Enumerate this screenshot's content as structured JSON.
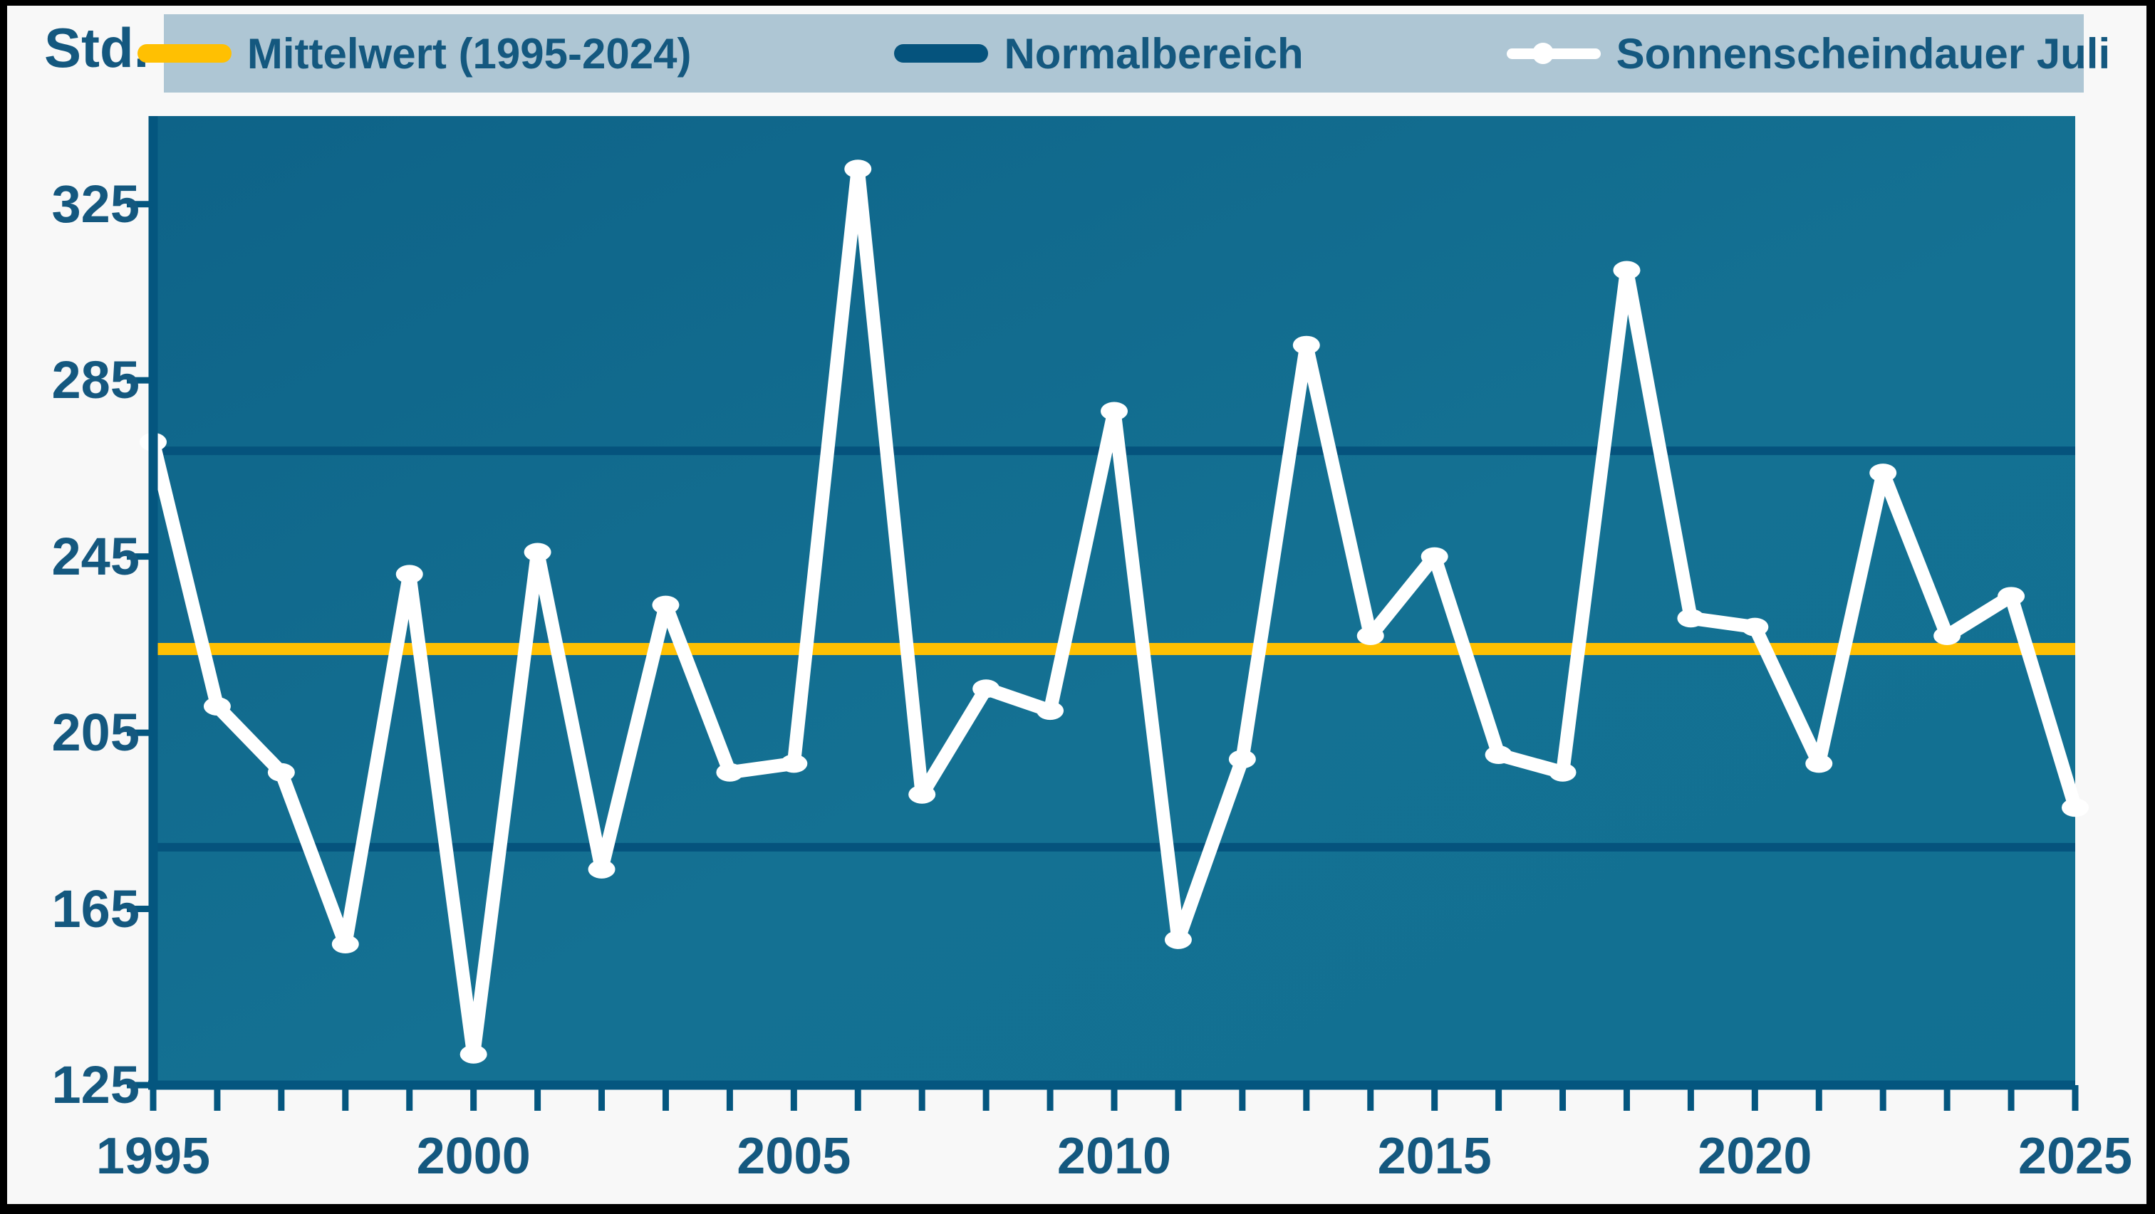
{
  "page": {
    "outer_frame_color": "#000000",
    "background": "#f8f8f8"
  },
  "y_axis": {
    "unit_label": "Std.",
    "tick_values": [
      325,
      285,
      245,
      205,
      165,
      125
    ]
  },
  "x_axis": {
    "label_years": [
      1995,
      2000,
      2005,
      2010,
      2015,
      2020,
      2025
    ]
  },
  "legend": {
    "items": [
      {
        "label": "Mittelwert (1995-2024)",
        "swatch": "yellow-line",
        "color": "#ffc002"
      },
      {
        "label": "Normalbereich",
        "swatch": "navy-line",
        "color": "#05537d"
      },
      {
        "label": "Sonnenscheindauer Juli",
        "swatch": "white-line-dot",
        "color": "#ffffff"
      }
    ]
  },
  "chart_data": {
    "type": "line",
    "title": "Sonnenscheindauer Juli",
    "xlabel": "",
    "ylabel": "Std.",
    "x": [
      1995,
      1996,
      1997,
      1998,
      1999,
      2000,
      2001,
      2002,
      2003,
      2004,
      2005,
      2006,
      2007,
      2008,
      2009,
      2010,
      2011,
      2012,
      2013,
      2014,
      2015,
      2016,
      2017,
      2018,
      2019,
      2020,
      2021,
      2022,
      2023,
      2024,
      2025
    ],
    "series": [
      {
        "name": "Sonnenscheindauer Juli",
        "color": "#ffffff",
        "values": [
          271,
          211,
          196,
          157,
          241,
          132,
          246,
          174,
          234,
          196,
          198,
          333,
          191,
          215,
          210,
          278,
          158,
          199,
          293,
          227,
          245,
          200,
          196,
          310,
          231,
          229,
          198,
          264,
          227,
          236,
          188
        ]
      }
    ],
    "reference_lines": [
      {
        "name": "Mittelwert (1995-2024)",
        "value": 224,
        "color": "#ffc002"
      },
      {
        "name": "Normalbereich oben",
        "value": 269,
        "color": "#05537d"
      },
      {
        "name": "Normalbereich unten",
        "value": 179,
        "color": "#05537d"
      }
    ],
    "ylim": [
      125,
      345
    ],
    "xlim": [
      1995,
      2025
    ],
    "x_tick_step": 1,
    "x_label_step": 5,
    "grid": false,
    "legend_position": "top"
  },
  "colors": {
    "plot_bg_start": "#0e6388",
    "plot_bg_mid": "#147193",
    "plot_bg_end": "#117092",
    "axis": "#04567f",
    "text": "#14587f",
    "legend_bg": "#aec6d4"
  }
}
